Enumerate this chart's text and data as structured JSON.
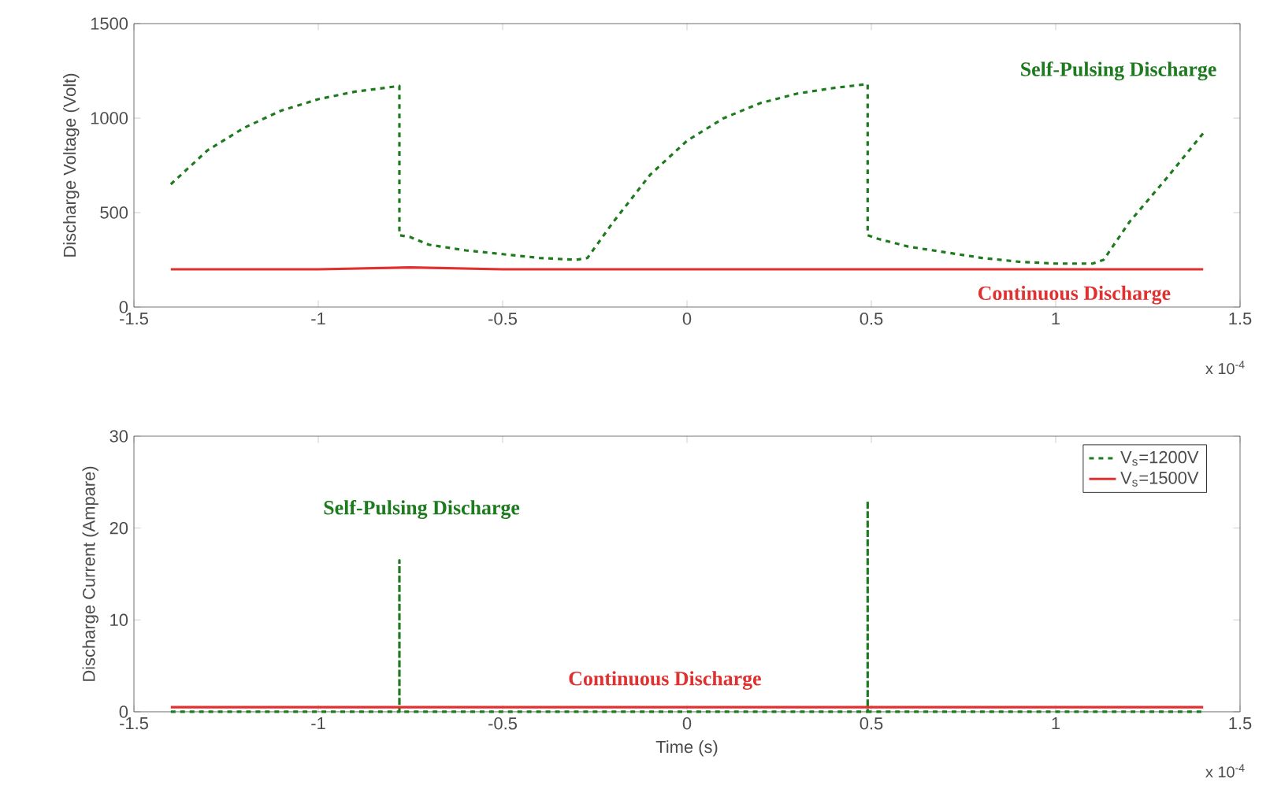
{
  "chart_data": [
    {
      "type": "line",
      "ylabel": "Discharge Voltage (Volt)",
      "xlim": [
        -1.5,
        1.5
      ],
      "ylim": [
        0,
        1500
      ],
      "xticks": [
        -1.5,
        -1,
        -0.5,
        0,
        0.5,
        1,
        1.5
      ],
      "yticks": [
        0,
        500,
        1000,
        1500
      ],
      "series": [
        {
          "color": "#1e7a1e",
          "line_style": "dashed",
          "x": [
            -1.4,
            -1.3,
            -1.2,
            -1.1,
            -1.0,
            -0.9,
            -0.78,
            -0.78,
            -0.75,
            -0.7,
            -0.6,
            -0.5,
            -0.4,
            -0.3,
            -0.27,
            -0.2,
            -0.1,
            0,
            0.1,
            0.2,
            0.3,
            0.4,
            0.49,
            0.49,
            0.52,
            0.6,
            0.7,
            0.8,
            0.9,
            1.0,
            1.1,
            1.13,
            1.2,
            1.3,
            1.4
          ],
          "values": [
            650,
            830,
            950,
            1040,
            1100,
            1140,
            1170,
            380,
            370,
            330,
            300,
            280,
            260,
            250,
            260,
            450,
            700,
            880,
            1000,
            1080,
            1130,
            1160,
            1180,
            380,
            360,
            320,
            290,
            260,
            240,
            230,
            230,
            250,
            450,
            680,
            920
          ]
        },
        {
          "color": "#e03030",
          "line_style": "solid",
          "x": [
            -1.4,
            -1.0,
            -0.75,
            -0.5,
            0,
            0.5,
            1.0,
            1.4
          ],
          "values": [
            200,
            200,
            210,
            200,
            200,
            200,
            200,
            200
          ]
        }
      ],
      "annotations": [
        "Self-Pulsing Discharge",
        "Continuous Discharge",
        "x 10$^{-4}$"
      ],
      "grid": false,
      "legend": false
    },
    {
      "type": "line",
      "xlabel": "Time (s)",
      "ylabel": "Discharge Current (Ampare)",
      "xlim": [
        -1.5,
        1.5
      ],
      "ylim": [
        0,
        30
      ],
      "xticks": [
        -1.5,
        -1,
        -0.5,
        0,
        0.5,
        1,
        1.5
      ],
      "yticks": [
        0,
        10,
        20,
        30
      ],
      "series": [
        {
          "name": "V$_{s}$=1200V",
          "color": "#1e7a1e",
          "line_style": "dashed",
          "x": [
            -1.4,
            -0.78,
            -0.78,
            -0.78,
            0.49,
            0.49,
            0.49,
            1.4
          ],
          "values": [
            0,
            0,
            16.5,
            0,
            0,
            23,
            0,
            0
          ]
        },
        {
          "name": "V$_{s}$=1500V",
          "color": "#e03030",
          "line_style": "solid",
          "x": [
            -1.4,
            -0.5,
            0,
            0.5,
            1.4
          ],
          "values": [
            0.5,
            0.5,
            0.5,
            0.5,
            0.5
          ]
        }
      ],
      "annotations": [
        "Self-Pulsing Discharge",
        "Continuous Discharge",
        "x 10$^{-4}$"
      ],
      "grid": false,
      "legend": "top right"
    }
  ]
}
